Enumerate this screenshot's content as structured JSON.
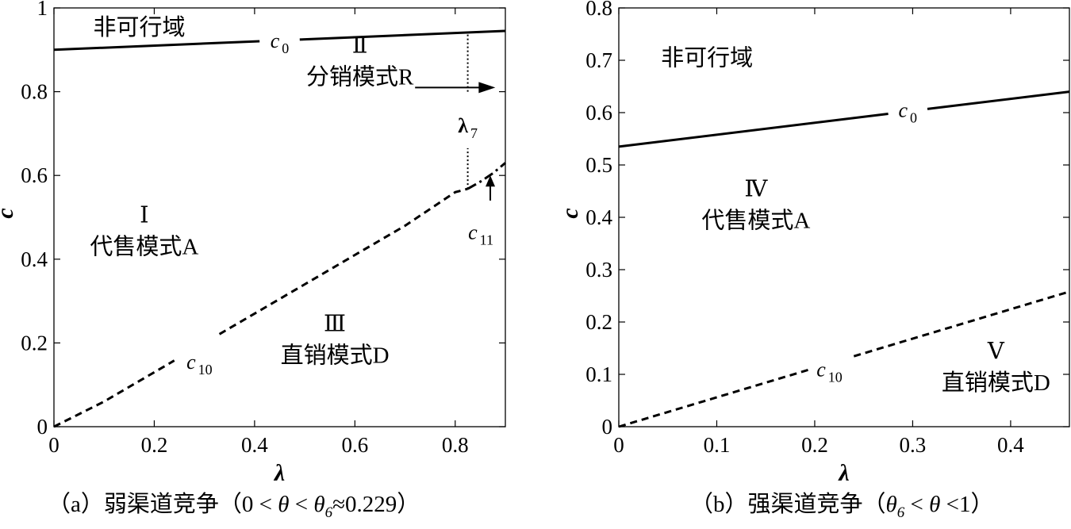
{
  "chart_data": [
    {
      "id": "a",
      "type": "line",
      "xlabel": "λ",
      "ylabel": "c",
      "xlim": [
        0,
        0.9
      ],
      "ylim": [
        0,
        1
      ],
      "xticks": [
        0,
        0.2,
        0.4,
        0.6,
        0.8
      ],
      "yticks": [
        0,
        0.2,
        0.4,
        0.6,
        0.8,
        1
      ],
      "xtick_labels": [
        "0",
        "0.2",
        "0.4",
        "0.6",
        "0.8"
      ],
      "ytick_labels": [
        "0",
        "0.2",
        "0.4",
        "0.6",
        "0.8",
        "1"
      ],
      "grid": false,
      "series": [
        {
          "name": "c0",
          "label_main": "c",
          "label_sub": "0",
          "style": "solid",
          "x": [
            0,
            0.9
          ],
          "y": [
            0.9,
            0.945
          ],
          "label_at": [
            0.45,
            0.922
          ],
          "gap": [
            0.41,
            0.49
          ]
        },
        {
          "name": "c10",
          "label_main": "c",
          "label_sub": "10",
          "style": "dashed",
          "x": [
            0,
            0.1,
            0.2,
            0.3,
            0.4,
            0.5,
            0.6,
            0.7,
            0.8,
            0.825
          ],
          "y": [
            0,
            0.06,
            0.13,
            0.2,
            0.27,
            0.34,
            0.41,
            0.48,
            0.56,
            0.568
          ],
          "label_at": [
            0.29,
            0.155
          ],
          "gap": [
            0.24,
            0.33
          ]
        },
        {
          "name": "c11",
          "label_main": "c",
          "label_sub": "11",
          "style": "dashdot",
          "x": [
            0.825,
            0.85,
            0.875,
            0.9
          ],
          "y": [
            0.568,
            0.585,
            0.605,
            0.63
          ]
        },
        {
          "name": "λ7",
          "label_main": "λ",
          "label_sub": "7",
          "style": "dotted",
          "x": [
            0.825,
            0.825
          ],
          "y": [
            0.568,
            0.939
          ],
          "label_at": [
            0.825,
            0.72
          ],
          "gap": [
            0.665,
            0.8
          ]
        }
      ],
      "regions": [
        {
          "numeral": "",
          "text": "非可行域",
          "at": [
            0.17,
            0.955
          ]
        },
        {
          "numeral": "Ⅱ",
          "text": "分销模式R",
          "at": [
            0.61,
            0.855
          ]
        },
        {
          "numeral": "Ⅰ",
          "text": "代售模式A",
          "at": [
            0.18,
            0.45
          ]
        },
        {
          "numeral": "Ⅲ",
          "text": "直销模式D",
          "at": [
            0.56,
            0.19
          ]
        }
      ],
      "caption": {
        "open": "（a）弱渠道竞争（0 < ",
        "theta": "θ",
        "lt": " < ",
        "theta_sub_main": "θ",
        "sub": "6",
        "close": "≈0.229）"
      }
    },
    {
      "id": "b",
      "type": "line",
      "xlabel": "λ",
      "ylabel": "c",
      "xlim": [
        0,
        0.46
      ],
      "ylim": [
        0,
        0.8
      ],
      "xticks": [
        0,
        0.1,
        0.2,
        0.3,
        0.4
      ],
      "yticks": [
        0,
        0.1,
        0.2,
        0.3,
        0.4,
        0.5,
        0.6,
        0.7,
        0.8
      ],
      "xtick_labels": [
        "0",
        "0.1",
        "0.2",
        "0.3",
        "0.4"
      ],
      "ytick_labels": [
        "0",
        "0.1",
        "0.2",
        "0.3",
        "0.4",
        "0.5",
        "0.6",
        "0.7",
        "0.8"
      ],
      "grid": false,
      "series": [
        {
          "name": "c0",
          "label_main": "c",
          "label_sub": "0",
          "style": "solid",
          "x": [
            0,
            0.46
          ],
          "y": [
            0.535,
            0.64
          ],
          "label_at": [
            0.295,
            0.605
          ],
          "gap": [
            0.275,
            0.315
          ]
        },
        {
          "name": "c10",
          "label_main": "c",
          "label_sub": "10",
          "style": "dashed",
          "x": [
            0,
            0.46
          ],
          "y": [
            0,
            0.258
          ],
          "label_at": [
            0.215,
            0.11
          ],
          "gap": [
            0.195,
            0.24
          ]
        }
      ],
      "regions": [
        {
          "numeral": "",
          "text": "非可行域",
          "at": [
            0.09,
            0.705
          ]
        },
        {
          "numeral": "Ⅳ",
          "text": "代售模式A",
          "at": [
            0.14,
            0.41
          ]
        },
        {
          "numeral": "Ⅴ",
          "text": "直销模式D",
          "at": [
            0.385,
            0.1
          ]
        }
      ],
      "caption": {
        "open": "（b）强渠道竞争（",
        "theta_sub_main": "θ",
        "sub": "6",
        "lt": " < ",
        "theta": "θ",
        "close": " <1）"
      }
    }
  ]
}
